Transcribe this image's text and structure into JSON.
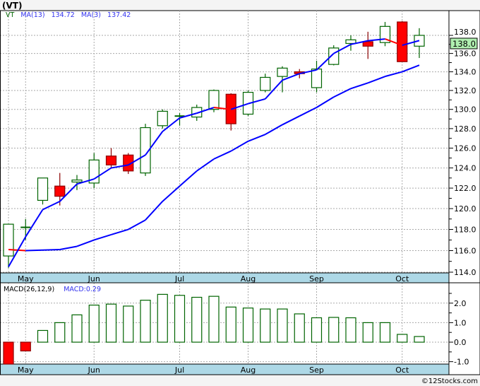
{
  "title": "(VT)",
  "copyright": "©12Stocks.com",
  "legend": {
    "symbol": "VT",
    "ma13_label": "MA(13)",
    "ma13_value": "134.72",
    "ma3_label": "MA(3)",
    "ma3_value": "137.42"
  },
  "macd_legend": {
    "label": "MACD(26,12,9)",
    "value": "MACD:0.29"
  },
  "last_price_label": "138.0",
  "colors": {
    "up": "#006400",
    "down": "#ff0000",
    "ma": "#0000ff",
    "band": "#add8e6",
    "price_tag": "#b0f0b0"
  },
  "chart_data": [
    {
      "type": "candlestick",
      "title": "(VT)",
      "scale": "log",
      "ylim": [
        114,
        139.8
      ],
      "y_ticks": [
        114,
        116,
        118,
        120,
        122,
        124,
        126,
        128,
        130,
        132,
        134,
        136,
        138
      ],
      "y_tick_labels": [
        "114.0",
        "116.0",
        "118.0",
        "120.0",
        "122.0",
        "124.0",
        "126.0",
        "128.0",
        "130.0",
        "132.0",
        "134.0",
        "136.0",
        "138.0"
      ],
      "x_ticks": [
        {
          "index": 1,
          "label": "May"
        },
        {
          "index": 5,
          "label": "Jun"
        },
        {
          "index": 10,
          "label": "Jul"
        },
        {
          "index": 14,
          "label": "Aug"
        },
        {
          "index": 18,
          "label": "Sep"
        },
        {
          "index": 23,
          "label": "Oct"
        }
      ],
      "ohlc": [
        [
          115.5,
          118.5,
          114.4,
          118.5
        ],
        [
          118.2,
          119.0,
          117.0,
          118.2
        ],
        [
          120.8,
          123.0,
          120.4,
          123.0
        ],
        [
          122.2,
          123.5,
          120.3,
          121.2
        ],
        [
          122.6,
          123.3,
          121.8,
          122.8
        ],
        [
          122.5,
          125.5,
          122.0,
          124.8
        ],
        [
          125.2,
          126.0,
          124.0,
          124.3
        ],
        [
          125.3,
          125.5,
          123.4,
          123.7
        ],
        [
          123.5,
          128.5,
          123.2,
          128.1
        ],
        [
          128.3,
          130.0,
          128.0,
          129.8
        ],
        [
          129.2,
          129.6,
          128.3,
          129.3
        ],
        [
          129.2,
          130.5,
          128.8,
          130.2
        ],
        [
          130.0,
          132.1,
          129.7,
          132.0
        ],
        [
          131.6,
          131.7,
          127.8,
          128.5
        ],
        [
          129.5,
          132.0,
          129.3,
          131.8
        ],
        [
          132.0,
          133.8,
          131.8,
          133.4
        ],
        [
          133.5,
          134.6,
          131.8,
          134.4
        ],
        [
          134.0,
          134.3,
          133.3,
          133.8
        ],
        [
          132.3,
          135.2,
          131.8,
          134.3
        ],
        [
          134.8,
          136.9,
          134.7,
          136.6
        ],
        [
          137.1,
          138.0,
          136.3,
          137.5
        ],
        [
          137.3,
          138.4,
          135.4,
          136.8
        ],
        [
          137.2,
          139.5,
          136.8,
          139.0
        ],
        [
          139.5,
          139.6,
          135.1,
          135.1
        ],
        [
          136.8,
          138.8,
          135.5,
          138.0
        ]
      ],
      "series": [
        {
          "name": "MA(13)",
          "values": [
            116.1,
            116.0,
            116.05,
            116.1,
            116.4,
            117.0,
            117.5,
            118.0,
            118.9,
            120.7,
            122.2,
            123.7,
            124.9,
            125.7,
            126.7,
            127.4,
            128.4,
            129.3,
            130.2,
            131.3,
            132.2,
            132.8,
            133.5,
            134.0,
            134.72
          ]
        },
        {
          "name": "MA(3)",
          "values": [
            114.5,
            117.3,
            119.9,
            120.7,
            122.4,
            122.9,
            124.0,
            124.3,
            125.3,
            127.7,
            129.1,
            129.6,
            130.2,
            130.0,
            130.6,
            131.1,
            133.1,
            133.8,
            134.2,
            136.0,
            137.0,
            137.4,
            137.6,
            136.9,
            137.42
          ]
        }
      ]
    },
    {
      "type": "bar",
      "title": "MACD(26,12,9)",
      "ylim": [
        -1.15,
        2.6
      ],
      "y_ticks": [
        -1,
        0,
        1,
        2
      ],
      "y_tick_labels": [
        "-1.0",
        "0.0",
        "1.0",
        "2.0"
      ],
      "values": [
        -1.3,
        -0.45,
        0.6,
        1.0,
        1.4,
        1.9,
        1.95,
        1.85,
        2.15,
        2.45,
        2.4,
        2.3,
        2.35,
        1.8,
        1.75,
        1.7,
        1.7,
        1.45,
        1.25,
        1.27,
        1.25,
        1.0,
        1.0,
        0.4,
        0.29
      ]
    }
  ]
}
